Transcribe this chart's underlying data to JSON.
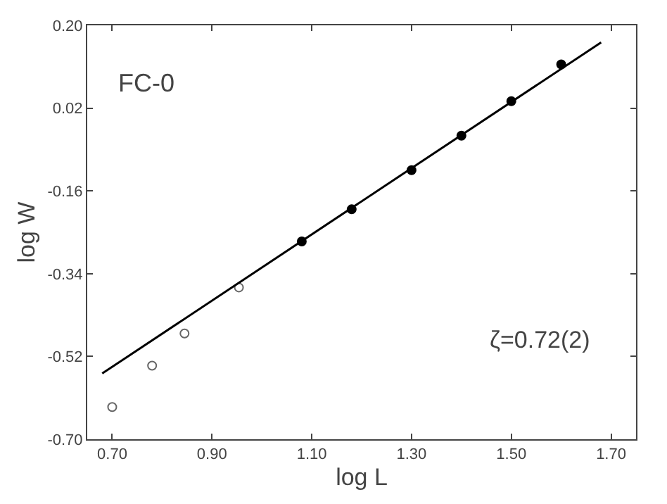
{
  "chart_data": {
    "type": "scatter",
    "xlabel": "log L",
    "ylabel": "log W",
    "xlim": [
      0.65,
      1.75
    ],
    "xticks": [
      {
        "value": 0.7,
        "label": "0.70"
      },
      {
        "value": 0.9,
        "label": "0.90"
      },
      {
        "value": 1.1,
        "label": "1.10"
      },
      {
        "value": 1.3,
        "label": "1.30"
      },
      {
        "value": 1.5,
        "label": "1.50"
      },
      {
        "value": 1.7,
        "label": "1.70"
      }
    ],
    "ylim": [
      -0.7,
      0.2
    ],
    "yticks": [
      {
        "value": -0.7,
        "label": "-0.70"
      },
      {
        "value": -0.52,
        "label": "-0.52"
      },
      {
        "value": -0.34,
        "label": "-0.34"
      },
      {
        "value": -0.16,
        "label": "-0.16"
      },
      {
        "value": 0.02,
        "label": "0.02"
      },
      {
        "value": 0.2,
        "label": "0.20"
      }
    ],
    "grid": false,
    "series": [
      {
        "marker": "circle-open",
        "color": "#666666",
        "x": [
          0.7,
          0.78,
          0.845,
          0.954
        ],
        "values": [
          -0.63,
          -0.54,
          -0.47,
          -0.37
        ]
      },
      {
        "marker": "circle",
        "color": "#000000",
        "x": [
          1.08,
          1.18,
          1.3,
          1.4,
          1.5,
          1.6
        ],
        "values": [
          -0.27,
          -0.2,
          -0.115,
          -0.04,
          0.035,
          0.115
        ]
      },
      {
        "type": "line",
        "marker": "none",
        "color": "#000000",
        "x": [
          0.68,
          1.68
        ],
        "values": [
          -0.557,
          0.163
        ]
      }
    ],
    "annotations": [
      "FC-0",
      "ζ=0.72(2)"
    ]
  }
}
